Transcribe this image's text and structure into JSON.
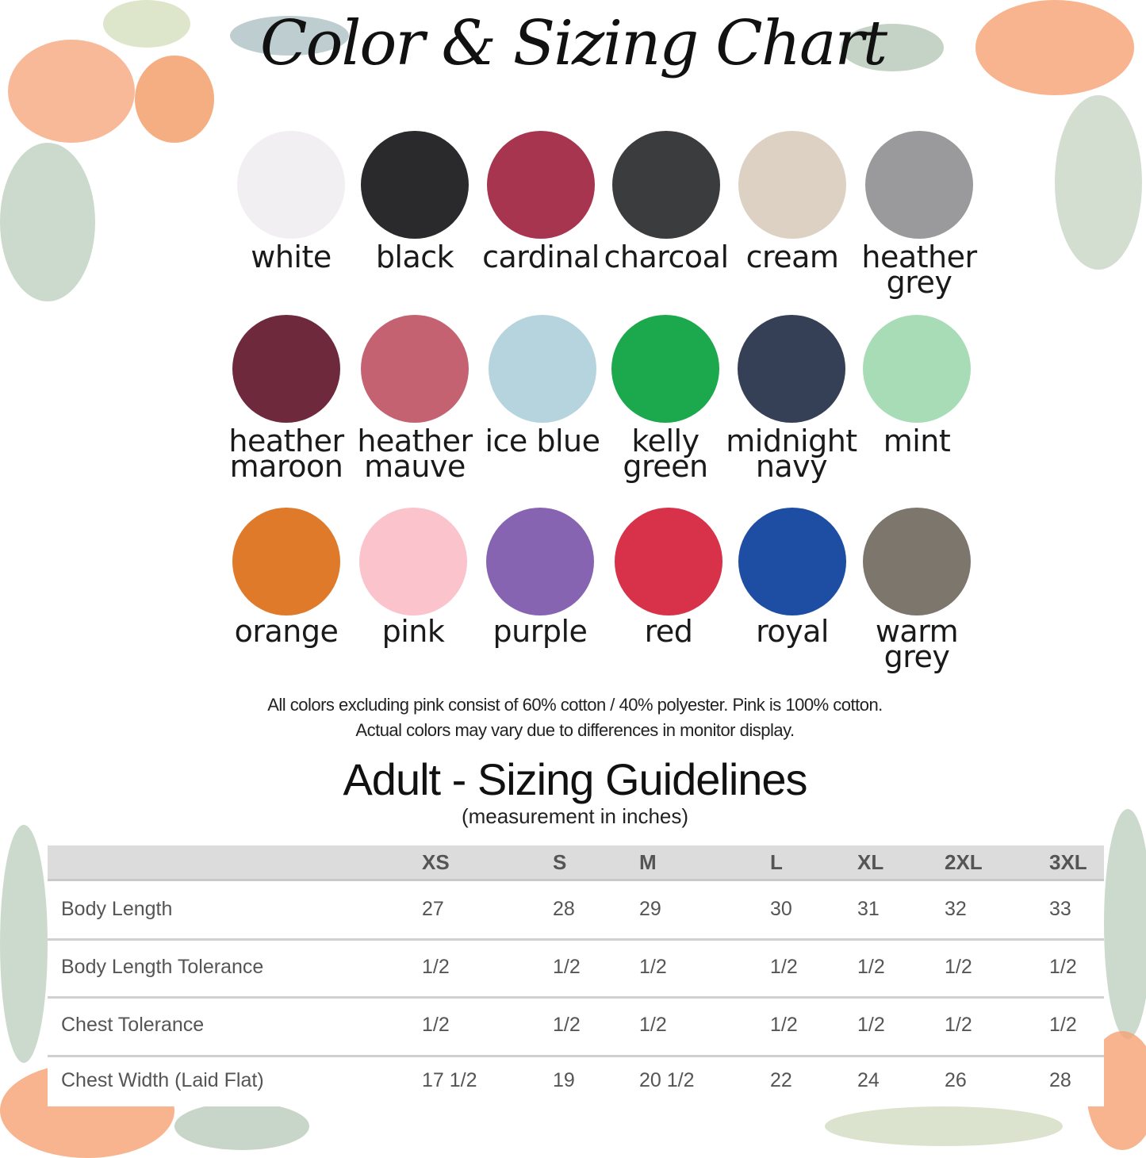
{
  "title": "Color & Sizing Chart",
  "colors": [
    {
      "name_line1": "white",
      "name_line2": "",
      "hex": "#f2eff3"
    },
    {
      "name_line1": "black",
      "name_line2": "",
      "hex": "#2a2a2c"
    },
    {
      "name_line1": "cardinal",
      "name_line2": "",
      "hex": "#a8354f"
    },
    {
      "name_line1": "charcoal",
      "name_line2": "",
      "hex": "#3b3c3e"
    },
    {
      "name_line1": "cream",
      "name_line2": "",
      "hex": "#ddd1c4"
    },
    {
      "name_line1": "heather",
      "name_line2": "grey",
      "hex": "#9a9a9c"
    },
    {
      "name_line1": "heather",
      "name_line2": "maroon",
      "hex": "#6e2a3c"
    },
    {
      "name_line1": "heather",
      "name_line2": "mauve",
      "hex": "#c56271"
    },
    {
      "name_line1": "ice blue",
      "name_line2": "",
      "hex": "#b6d4de"
    },
    {
      "name_line1": "kelly",
      "name_line2": "green",
      "hex": "#1ca84c"
    },
    {
      "name_line1": "midnight",
      "name_line2": "navy",
      "hex": "#353f55"
    },
    {
      "name_line1": "mint",
      "name_line2": "",
      "hex": "#a8dcb6"
    },
    {
      "name_line1": "orange",
      "name_line2": "",
      "hex": "#de7a2a"
    },
    {
      "name_line1": "pink",
      "name_line2": "",
      "hex": "#fbc3cb"
    },
    {
      "name_line1": "purple",
      "name_line2": "",
      "hex": "#8664b2"
    },
    {
      "name_line1": "red",
      "name_line2": "",
      "hex": "#d8314a"
    },
    {
      "name_line1": "royal",
      "name_line2": "",
      "hex": "#1e4ea3"
    },
    {
      "name_line1": "warm",
      "name_line2": "grey",
      "hex": "#7c766c"
    }
  ],
  "notes": {
    "line1": "All colors excluding pink consist of 60% cotton / 40% polyester. Pink is 100% cotton.",
    "line2": "Actual colors may vary due to differences in monitor display."
  },
  "sizing": {
    "title": "Adult - Sizing Guidelines",
    "subtitle": "(measurement in inches)",
    "sizes": [
      "XS",
      "S",
      "M",
      "L",
      "XL",
      "2XL",
      "3XL"
    ],
    "rows": [
      {
        "label": "Body Length",
        "values": [
          "27",
          "28",
          "29",
          "30",
          "31",
          "32",
          "33"
        ]
      },
      {
        "label": "Body Length Tolerance",
        "values": [
          "1/2",
          "1/2",
          "1/2",
          "1/2",
          "1/2",
          "1/2",
          "1/2"
        ]
      },
      {
        "label": "Chest Tolerance",
        "values": [
          "1/2",
          "1/2",
          "1/2",
          "1/2",
          "1/2",
          "1/2",
          "1/2"
        ]
      },
      {
        "label": "Chest Width (Laid Flat)",
        "values": [
          "17 1/2",
          "19",
          "20 1/2",
          "22",
          "24",
          "26",
          "28"
        ]
      }
    ]
  }
}
